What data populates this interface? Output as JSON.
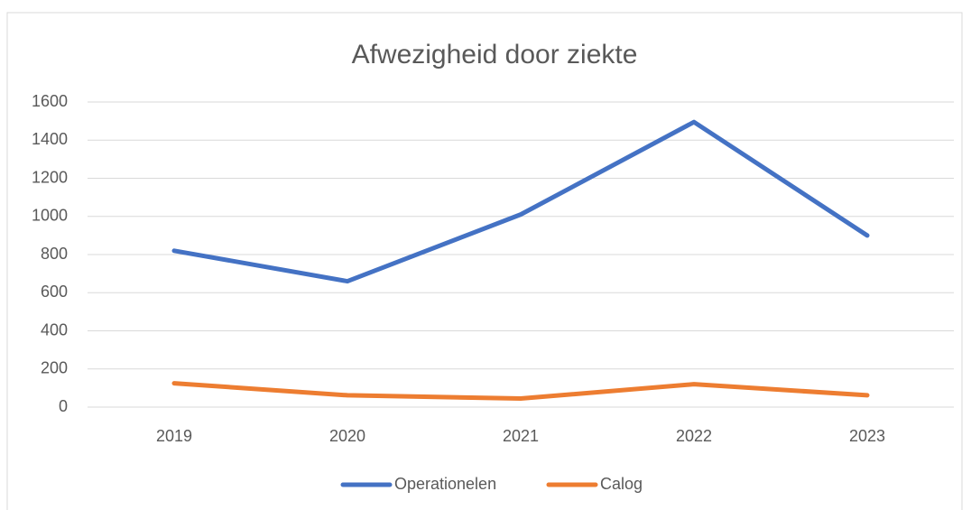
{
  "chart_data": {
    "type": "line",
    "title": "Afwezigheid door ziekte",
    "categories": [
      "2019",
      "2020",
      "2021",
      "2022",
      "2023"
    ],
    "series": [
      {
        "name": "Operationelen",
        "color": "#4472c4",
        "values": [
          820,
          660,
          1010,
          1495,
          900
        ]
      },
      {
        "name": "Calog",
        "color": "#ed7d31",
        "values": [
          125,
          62,
          45,
          120,
          62
        ]
      }
    ],
    "ylim": [
      0,
      1600
    ],
    "yticks": [
      0,
      200,
      400,
      600,
      800,
      1000,
      1200,
      1400,
      1600
    ],
    "grid": true,
    "legend": "bottom"
  }
}
